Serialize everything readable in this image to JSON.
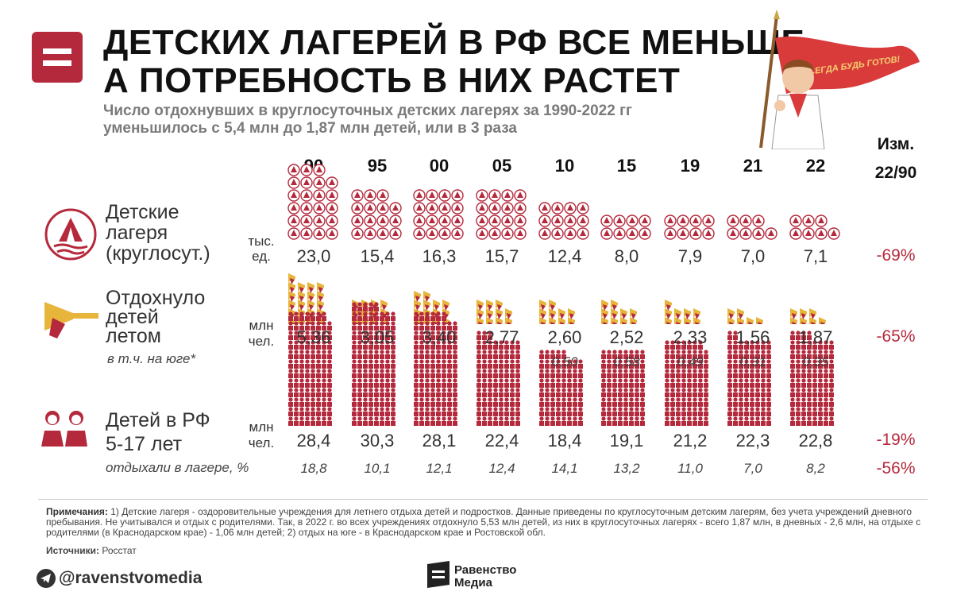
{
  "header": {
    "title_line1": "ДЕТСКИХ ЛАГЕРЕЙ В РФ ВСЕ МЕНЬШЕ,",
    "title_line2": "А ПОТРЕБНОСТЬ В НИХ РАСТЕТ",
    "subtitle_line1": "Число отдохнувших в круглосуточных детских лагерях за 1990-2022 гг",
    "subtitle_line2": "уменьшилось с 5,4 млн до 1,87 млн детей, или в 3 раза",
    "flag_text": "ВСЕГДА БУДЬ ГОТОВ!"
  },
  "columns": {
    "years": [
      "90",
      "95",
      "00",
      "05",
      "10",
      "15",
      "19",
      "21",
      "22"
    ],
    "change_label_1": "Изм.",
    "change_label_2": "22/90"
  },
  "chart_data": {
    "type": "table",
    "title": "ДЕТСКИХ ЛАГЕРЕЙ В РФ ВСЕ МЕНЬШЕ, А ПОТРЕБНОСТЬ В НИХ РАСТЕТ",
    "categories": [
      "90",
      "95",
      "00",
      "05",
      "10",
      "15",
      "19",
      "21",
      "22"
    ],
    "series": [
      {
        "name": "Детские лагеря (круглосут.)",
        "unit": "тыс. ед.",
        "values": [
          "23,0",
          "15,4",
          "16,3",
          "15,7",
          "12,4",
          "8,0",
          "7,9",
          "7,0",
          "7,1"
        ],
        "numeric": [
          23.0,
          15.4,
          16.3,
          15.7,
          12.4,
          8.0,
          7.9,
          7.0,
          7.1
        ],
        "change": "-69%"
      },
      {
        "name": "Отдохнуло детей летом",
        "unit": "млн чел.",
        "values": [
          "5,36",
          "3,05",
          "3,40",
          "2,77",
          "2,60",
          "2,52",
          "2,33",
          "1,56",
          "1,87"
        ],
        "numeric": [
          5.36,
          3.05,
          3.4,
          2.77,
          2.6,
          2.52,
          2.33,
          1.56,
          1.87
        ],
        "change": "-65%"
      },
      {
        "name": "в т.ч. на юге*",
        "values": [
          "",
          "",
          "",
          "",
          "0,50",
          "0,58",
          "0,49",
          "0,31",
          "0,35"
        ]
      },
      {
        "name": "Детей в РФ 5-17 лет",
        "unit": "млн чел.",
        "values": [
          "28,4",
          "30,3",
          "28,1",
          "22,4",
          "18,4",
          "19,1",
          "21,2",
          "22,3",
          "22,8"
        ],
        "numeric": [
          28.4,
          30.3,
          28.1,
          22.4,
          18.4,
          19.1,
          21.2,
          22.3,
          22.8
        ],
        "change": "-19%"
      },
      {
        "name": "отдыхали в лагере, %",
        "values": [
          "18,8",
          "10,1",
          "12,1",
          "12,4",
          "14,1",
          "13,2",
          "11,0",
          "7,0",
          "8,2"
        ],
        "numeric": [
          18.8,
          10.1,
          12.1,
          12.4,
          14.1,
          13.2,
          11.0,
          7.0,
          8.2
        ],
        "change": "-56%"
      }
    ]
  },
  "rows": {
    "camps": {
      "label_1": "Детские",
      "label_2": "лагеря",
      "label_3": "(круглосут.)",
      "unit_1": "тыс.",
      "unit_2": "ед."
    },
    "rested": {
      "label_1": "Отдохнуло",
      "label_2": "детей",
      "label_3": "летом",
      "unit_1": "млн",
      "unit_2": "чел.",
      "south_label": "в т.ч. на юге*"
    },
    "children": {
      "label_1": "Детей в РФ",
      "label_2": "5-17 лет",
      "unit_1": "млн",
      "unit_2": "чел.",
      "share_label": "отдыхали в лагере, %"
    }
  },
  "colors": {
    "accent": "#b4293c",
    "icon_gold": "#e8b53c",
    "text_grey": "#7a7a7a"
  },
  "footer": {
    "notes_label": "Примечания:",
    "notes_text": "1) Детские лагеря - оздоровительные учреждения для летнего отдыха детей и подростков. Данные приведены по круглосуточным детским лагерям, без учета учреждений дневного пребывания. Не учитывался и отдых с родителями. Так, в 2022 г. во всех учреждениях отдохнуло 5,53 млн детей, из них в круглосуточных лагерях - всего 1,87 млн, в дневных - 2,6 млн, на отдыхе с родителями (в Краснодарском крае) - 1,06 млн детей; 2) отдых на юге - в Краснодарском крае и Ростовской обл.",
    "sources_label": "Источники:",
    "sources_text": "Росстат",
    "handle": "@ravenstvomedia",
    "brand_1": "Равенство",
    "brand_2": "Медиа"
  }
}
